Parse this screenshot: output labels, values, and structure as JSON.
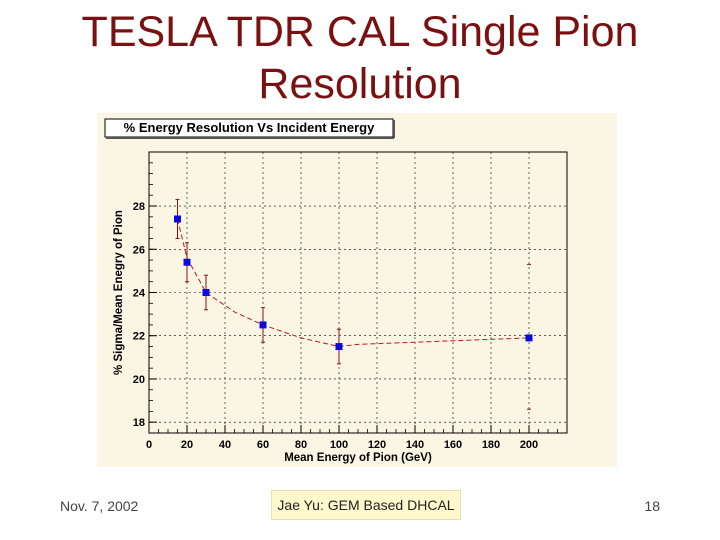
{
  "slide": {
    "title_line1": "TESLA TDR CAL Single Pion",
    "title_line2": "Resolution",
    "footer_date": "Nov. 7, 2002",
    "footer_center": "Jae Yu: GEM Based DHCAL",
    "page_number": "18"
  },
  "colors": {
    "title": "#7a1010",
    "plot_bg": "#fbf6e4",
    "frame": "#000000",
    "marker": "#0a0ae0",
    "fit_line": "#c01818",
    "error_bar": "#8b1010",
    "grid": "#000000"
  },
  "chart_data": {
    "type": "scatter",
    "title": "% Energy Resolution Vs Incident Energy",
    "xlabel": "Mean Energy of Pion (GeV)",
    "ylabel": "% Sigma/Mean Enegry of Pion",
    "xlim": [
      0,
      220
    ],
    "ylim": [
      17.5,
      30.5
    ],
    "grid": true,
    "x_ticks": [
      0,
      20,
      40,
      60,
      80,
      100,
      120,
      140,
      160,
      180,
      200
    ],
    "y_ticks": [
      18,
      20,
      22,
      24,
      26,
      28
    ],
    "series": [
      {
        "x": [
          15,
          20,
          30,
          60,
          100,
          200
        ],
        "y": [
          27.4,
          25.4,
          24.0,
          22.5,
          21.5,
          21.9
        ],
        "yerr": [
          0.9,
          0.9,
          0.8,
          0.8,
          0.8,
          0.0
        ]
      }
    ],
    "fit_curve": {
      "x": [
        15,
        20,
        30,
        45,
        60,
        80,
        100,
        110,
        140,
        170,
        200
      ],
      "y": [
        27.4,
        25.6,
        24.0,
        23.1,
        22.5,
        21.9,
        21.5,
        21.6,
        21.7,
        21.8,
        21.9
      ]
    },
    "extra_error_marks": [
      {
        "x": 200,
        "y": 25.3
      },
      {
        "x": 200,
        "y": 18.6
      }
    ]
  }
}
